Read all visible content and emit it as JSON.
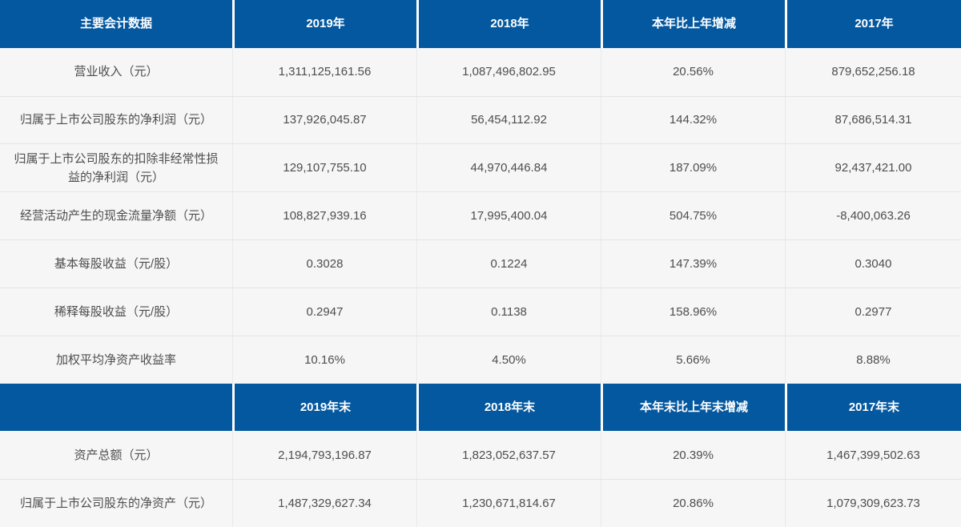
{
  "colors": {
    "header_bg": "#04589F",
    "header_text": "#FFFFFF",
    "row_bg": "#F6F6F7",
    "divider": "#E4E4E5",
    "body_text": "#4E4E4E"
  },
  "table": {
    "header_annual": [
      "主要会计数据",
      "2019年",
      "2018年",
      "本年比上年增减",
      "2017年"
    ],
    "rows_annual": [
      {
        "label": "营业收入（元）",
        "y2019": "1,311,125,161.56",
        "y2018": "1,087,496,802.95",
        "change": "20.56%",
        "y2017": "879,652,256.18"
      },
      {
        "label": "归属于上市公司股东的净利润（元）",
        "y2019": "137,926,045.87",
        "y2018": "56,454,112.92",
        "change": "144.32%",
        "y2017": "87,686,514.31"
      },
      {
        "label": "归属于上市公司股东的扣除非经常性损益的净利润（元）",
        "y2019": "129,107,755.10",
        "y2018": "44,970,446.84",
        "change": "187.09%",
        "y2017": "92,437,421.00"
      },
      {
        "label": "经营活动产生的现金流量净额（元）",
        "y2019": "108,827,939.16",
        "y2018": "17,995,400.04",
        "change": "504.75%",
        "y2017": "-8,400,063.26"
      },
      {
        "label": "基本每股收益（元/股）",
        "y2019": "0.3028",
        "y2018": "0.1224",
        "change": "147.39%",
        "y2017": "0.3040"
      },
      {
        "label": "稀释每股收益（元/股）",
        "y2019": "0.2947",
        "y2018": "0.1138",
        "change": "158.96%",
        "y2017": "0.2977"
      },
      {
        "label": "加权平均净资产收益率",
        "y2019": "10.16%",
        "y2018": "4.50%",
        "change": "5.66%",
        "y2017": "8.88%"
      }
    ],
    "header_eoy": [
      "",
      "2019年末",
      "2018年末",
      "本年末比上年末增减",
      "2017年末"
    ],
    "rows_eoy": [
      {
        "label": "资产总额（元）",
        "y2019": "2,194,793,196.87",
        "y2018": "1,823,052,637.57",
        "change": "20.39%",
        "y2017": "1,467,399,502.63"
      },
      {
        "label": "归属于上市公司股东的净资产（元）",
        "y2019": "1,487,329,627.34",
        "y2018": "1,230,671,814.67",
        "change": "20.86%",
        "y2017": "1,079,309,623.73"
      }
    ]
  }
}
